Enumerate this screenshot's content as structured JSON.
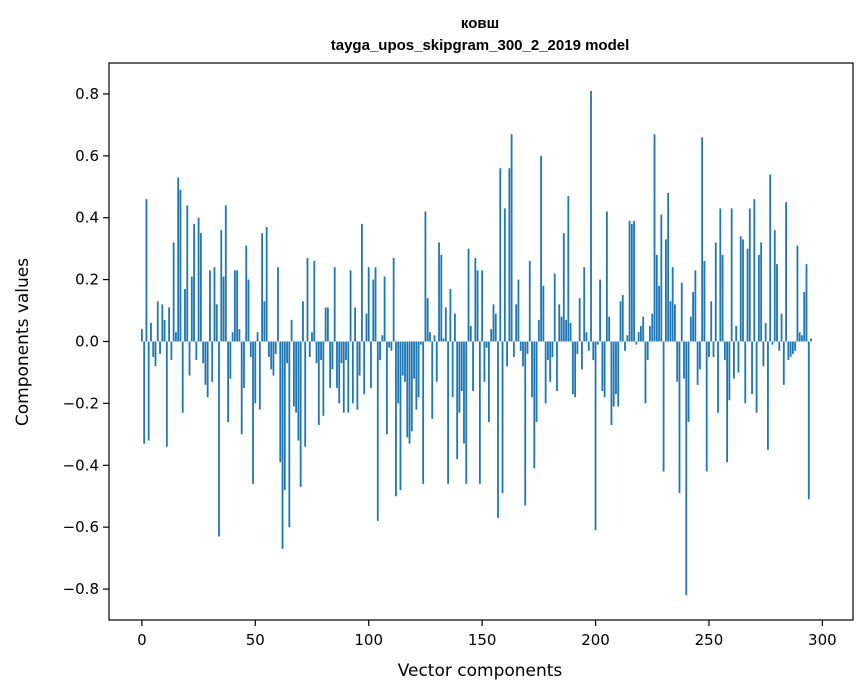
{
  "chart_data": {
    "type": "bar",
    "title": "ковш",
    "subtitle": "tayga_upos_skipgram_300_2_2019 model",
    "xlabel": "Vector components",
    "ylabel": "Components values",
    "xlim": [
      -14.5,
      313.5
    ],
    "ylim": [
      -0.9,
      0.9
    ],
    "xticks": [
      0,
      50,
      100,
      150,
      200,
      250,
      300
    ],
    "xtick_labels": [
      "0",
      "50",
      "100",
      "150",
      "200",
      "250",
      "300"
    ],
    "yticks": [
      -0.8,
      -0.6,
      -0.4,
      -0.2,
      0.0,
      0.2,
      0.4,
      0.6,
      0.8
    ],
    "ytick_labels": [
      "−0.8",
      "−0.6",
      "−0.4",
      "−0.2",
      "0.0",
      "0.2",
      "0.4",
      "0.6",
      "0.8"
    ],
    "bar_color": "#1f77b4",
    "grid": false,
    "values": [
      0.04,
      -0.33,
      0.46,
      -0.32,
      0.06,
      -0.05,
      -0.08,
      0.13,
      -0.04,
      0.12,
      0.07,
      -0.34,
      0.11,
      -0.06,
      0.32,
      0.03,
      0.53,
      0.49,
      -0.23,
      0.17,
      0.44,
      -0.11,
      0.21,
      0.38,
      -0.06,
      0.4,
      0.35,
      -0.07,
      -0.14,
      -0.18,
      0.23,
      -0.13,
      0.24,
      0.12,
      -0.63,
      0.36,
      0.21,
      0.44,
      -0.26,
      -0.12,
      0.03,
      0.23,
      0.23,
      0.04,
      -0.3,
      -0.15,
      0.31,
      0.2,
      -0.05,
      -0.46,
      -0.2,
      0.03,
      -0.22,
      0.35,
      0.13,
      0.37,
      -0.05,
      -0.09,
      -0.11,
      -0.04,
      0.24,
      -0.39,
      -0.67,
      -0.48,
      -0.07,
      -0.6,
      0.07,
      -0.21,
      -0.23,
      -0.32,
      -0.47,
      0.13,
      -0.34,
      0.27,
      -0.05,
      0.03,
      0.26,
      -0.07,
      -0.27,
      -0.06,
      -0.24,
      0.11,
      0.11,
      -0.15,
      -0.09,
      0.24,
      -0.15,
      -0.2,
      -0.07,
      -0.23,
      -0.06,
      -0.23,
      0.23,
      -0.2,
      0.11,
      -0.22,
      -0.11,
      0.38,
      -0.17,
      0.09,
      0.24,
      -0.15,
      0.2,
      0.24,
      -0.58,
      -0.06,
      0.02,
      0.21,
      -0.3,
      -0.02,
      -0.03,
      0.27,
      -0.5,
      -0.2,
      -0.48,
      -0.11,
      -0.13,
      -0.31,
      -0.33,
      -0.29,
      -0.12,
      -0.22,
      -0.18,
      -0.01,
      -0.46,
      0.42,
      0.14,
      0.03,
      -0.25,
      0.02,
      -0.13,
      0.32,
      0.28,
      0.01,
      0.11,
      -0.46,
      0.17,
      -0.18,
      0.09,
      -0.38,
      -0.23,
      -0.16,
      -0.33,
      -0.46,
      0.3,
      0.05,
      -0.16,
      0.27,
      0.23,
      -0.46,
      0.23,
      -0.13,
      -0.02,
      -0.26,
      0.04,
      0.12,
      0.09,
      -0.57,
      0.56,
      -0.49,
      0.43,
      -0.08,
      0.56,
      0.67,
      -0.05,
      0.12,
      0.2,
      -0.03,
      -0.08,
      -0.53,
      -0.04,
      0.26,
      -0.18,
      -0.41,
      -0.26,
      0.07,
      0.6,
      0.18,
      -0.2,
      -0.06,
      -0.13,
      -0.05,
      0.22,
      -0.16,
      0.12,
      0.08,
      0.35,
      0.07,
      0.47,
      0.06,
      -0.17,
      -0.18,
      -0.04,
      0.14,
      -0.09,
      0.24,
      0.03,
      -0.03,
      0.81,
      -0.06,
      -0.61,
      -0.01,
      0.2,
      -0.16,
      -0.18,
      0.42,
      0.08,
      -0.27,
      -0.21,
      -0.17,
      -0.21,
      0.13,
      0.15,
      -0.03,
      0.02,
      0.39,
      0.38,
      0.39,
      -0.01,
      0.03,
      0.05,
      0.08,
      -0.2,
      -0.06,
      0.05,
      0.09,
      0.67,
      0.28,
      0.18,
      0.41,
      -0.42,
      0.33,
      0.48,
      0.13,
      0.24,
      0.12,
      -0.13,
      -0.49,
      0.19,
      -0.12,
      -0.82,
      -0.26,
      0.08,
      0.16,
      0.23,
      -0.14,
      -0.09,
      0.66,
      0.26,
      -0.42,
      -0.05,
      0.13,
      -0.05,
      0.32,
      -0.23,
      0.43,
      0.28,
      -0.06,
      -0.39,
      -0.19,
      0.43,
      -0.12,
      0.05,
      -0.1,
      0.34,
      0.33,
      -0.2,
      0.3,
      0.43,
      -0.17,
      0.46,
      -0.23,
      0.28,
      0.32,
      -0.08,
      0.06,
      -0.35,
      0.54,
      -0.01,
      0.36,
      0.25,
      -0.03,
      0.09,
      -0.14,
      0.45,
      -0.06,
      -0.05,
      -0.04,
      -0.03,
      0.31,
      0.03,
      0.02,
      0.16,
      0.25,
      -0.51,
      0.01
    ]
  }
}
